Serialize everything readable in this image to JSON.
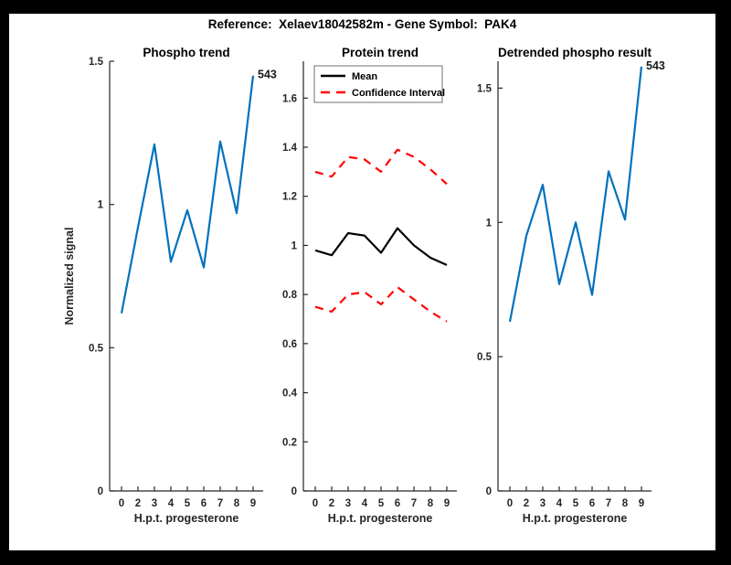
{
  "figure": {
    "title": "Reference:  Xelaev18042582m - Gene Symbol:  PAK4",
    "background": "#ffffff",
    "frame_color": "#000000",
    "axis_color": "#262626"
  },
  "chart_data": [
    {
      "type": "line",
      "name": "phospho-trend",
      "title": "Phospho trend",
      "xlabel": "H.p.t. progesterone",
      "ylabel": "Normalized signal",
      "categories": [
        "0",
        "2",
        "3",
        "4",
        "5",
        "6",
        "7",
        "8",
        "9"
      ],
      "ylim": [
        0,
        1.5
      ],
      "ytick_values": [
        0,
        0.5,
        1,
        1.5
      ],
      "ytick_labels": [
        "0",
        "0.5",
        "1",
        "1.5"
      ],
      "grid": false,
      "legend": null,
      "endpoint_label": "543",
      "series": [
        {
          "name": "phospho-signal",
          "color": "#0072BD",
          "dash": false,
          "values": [
            0.62,
            0.92,
            1.21,
            0.8,
            0.98,
            0.78,
            1.22,
            0.97,
            1.45
          ]
        }
      ]
    },
    {
      "type": "line",
      "name": "protein-trend",
      "title": "Protein trend",
      "xlabel": "H.p.t. progesterone",
      "ylabel": "",
      "categories": [
        "0",
        "2",
        "3",
        "4",
        "5",
        "6",
        "7",
        "8",
        "9"
      ],
      "ylim": [
        0,
        1.75
      ],
      "ytick_values": [
        0,
        0.2,
        0.4,
        0.6,
        0.8,
        1,
        1.2,
        1.4,
        1.6
      ],
      "ytick_labels": [
        "0",
        "0.2",
        "0.4",
        "0.6",
        "0.8",
        "1",
        "1.2",
        "1.4",
        "1.6"
      ],
      "grid": false,
      "legend": {
        "position": "northwest",
        "entries": [
          {
            "label": "Mean",
            "color": "#000000",
            "dash": false
          },
          {
            "label": "Confidence Interval",
            "color": "#ff0000",
            "dash": true
          }
        ]
      },
      "endpoint_label": null,
      "series": [
        {
          "name": "confidence-interval-upper",
          "color": "#ff0000",
          "dash": true,
          "values": [
            1.3,
            1.28,
            1.36,
            1.35,
            1.3,
            1.39,
            1.36,
            1.31,
            1.25
          ]
        },
        {
          "name": "mean",
          "color": "#000000",
          "dash": false,
          "values": [
            0.98,
            0.96,
            1.05,
            1.04,
            0.97,
            1.07,
            1.0,
            0.95,
            0.92
          ]
        },
        {
          "name": "confidence-interval-lower",
          "color": "#ff0000",
          "dash": true,
          "values": [
            0.75,
            0.73,
            0.8,
            0.81,
            0.76,
            0.83,
            0.78,
            0.73,
            0.69
          ]
        }
      ]
    },
    {
      "type": "line",
      "name": "detrended-phospho-result",
      "title": "Detrended phospho result",
      "xlabel": "H.p.t. progesterone",
      "ylabel": "",
      "categories": [
        "0",
        "2",
        "3",
        "4",
        "5",
        "6",
        "7",
        "8",
        "9"
      ],
      "ylim": [
        0,
        1.6
      ],
      "ytick_values": [
        0,
        0.5,
        1,
        1.5
      ],
      "ytick_labels": [
        "0",
        "0.5",
        "1",
        "1.5"
      ],
      "grid": false,
      "legend": null,
      "endpoint_label": "543",
      "series": [
        {
          "name": "detrended-signal",
          "color": "#0072BD",
          "dash": false,
          "values": [
            0.63,
            0.95,
            1.14,
            0.77,
            1.0,
            0.73,
            1.19,
            1.01,
            1.58
          ]
        }
      ]
    }
  ]
}
